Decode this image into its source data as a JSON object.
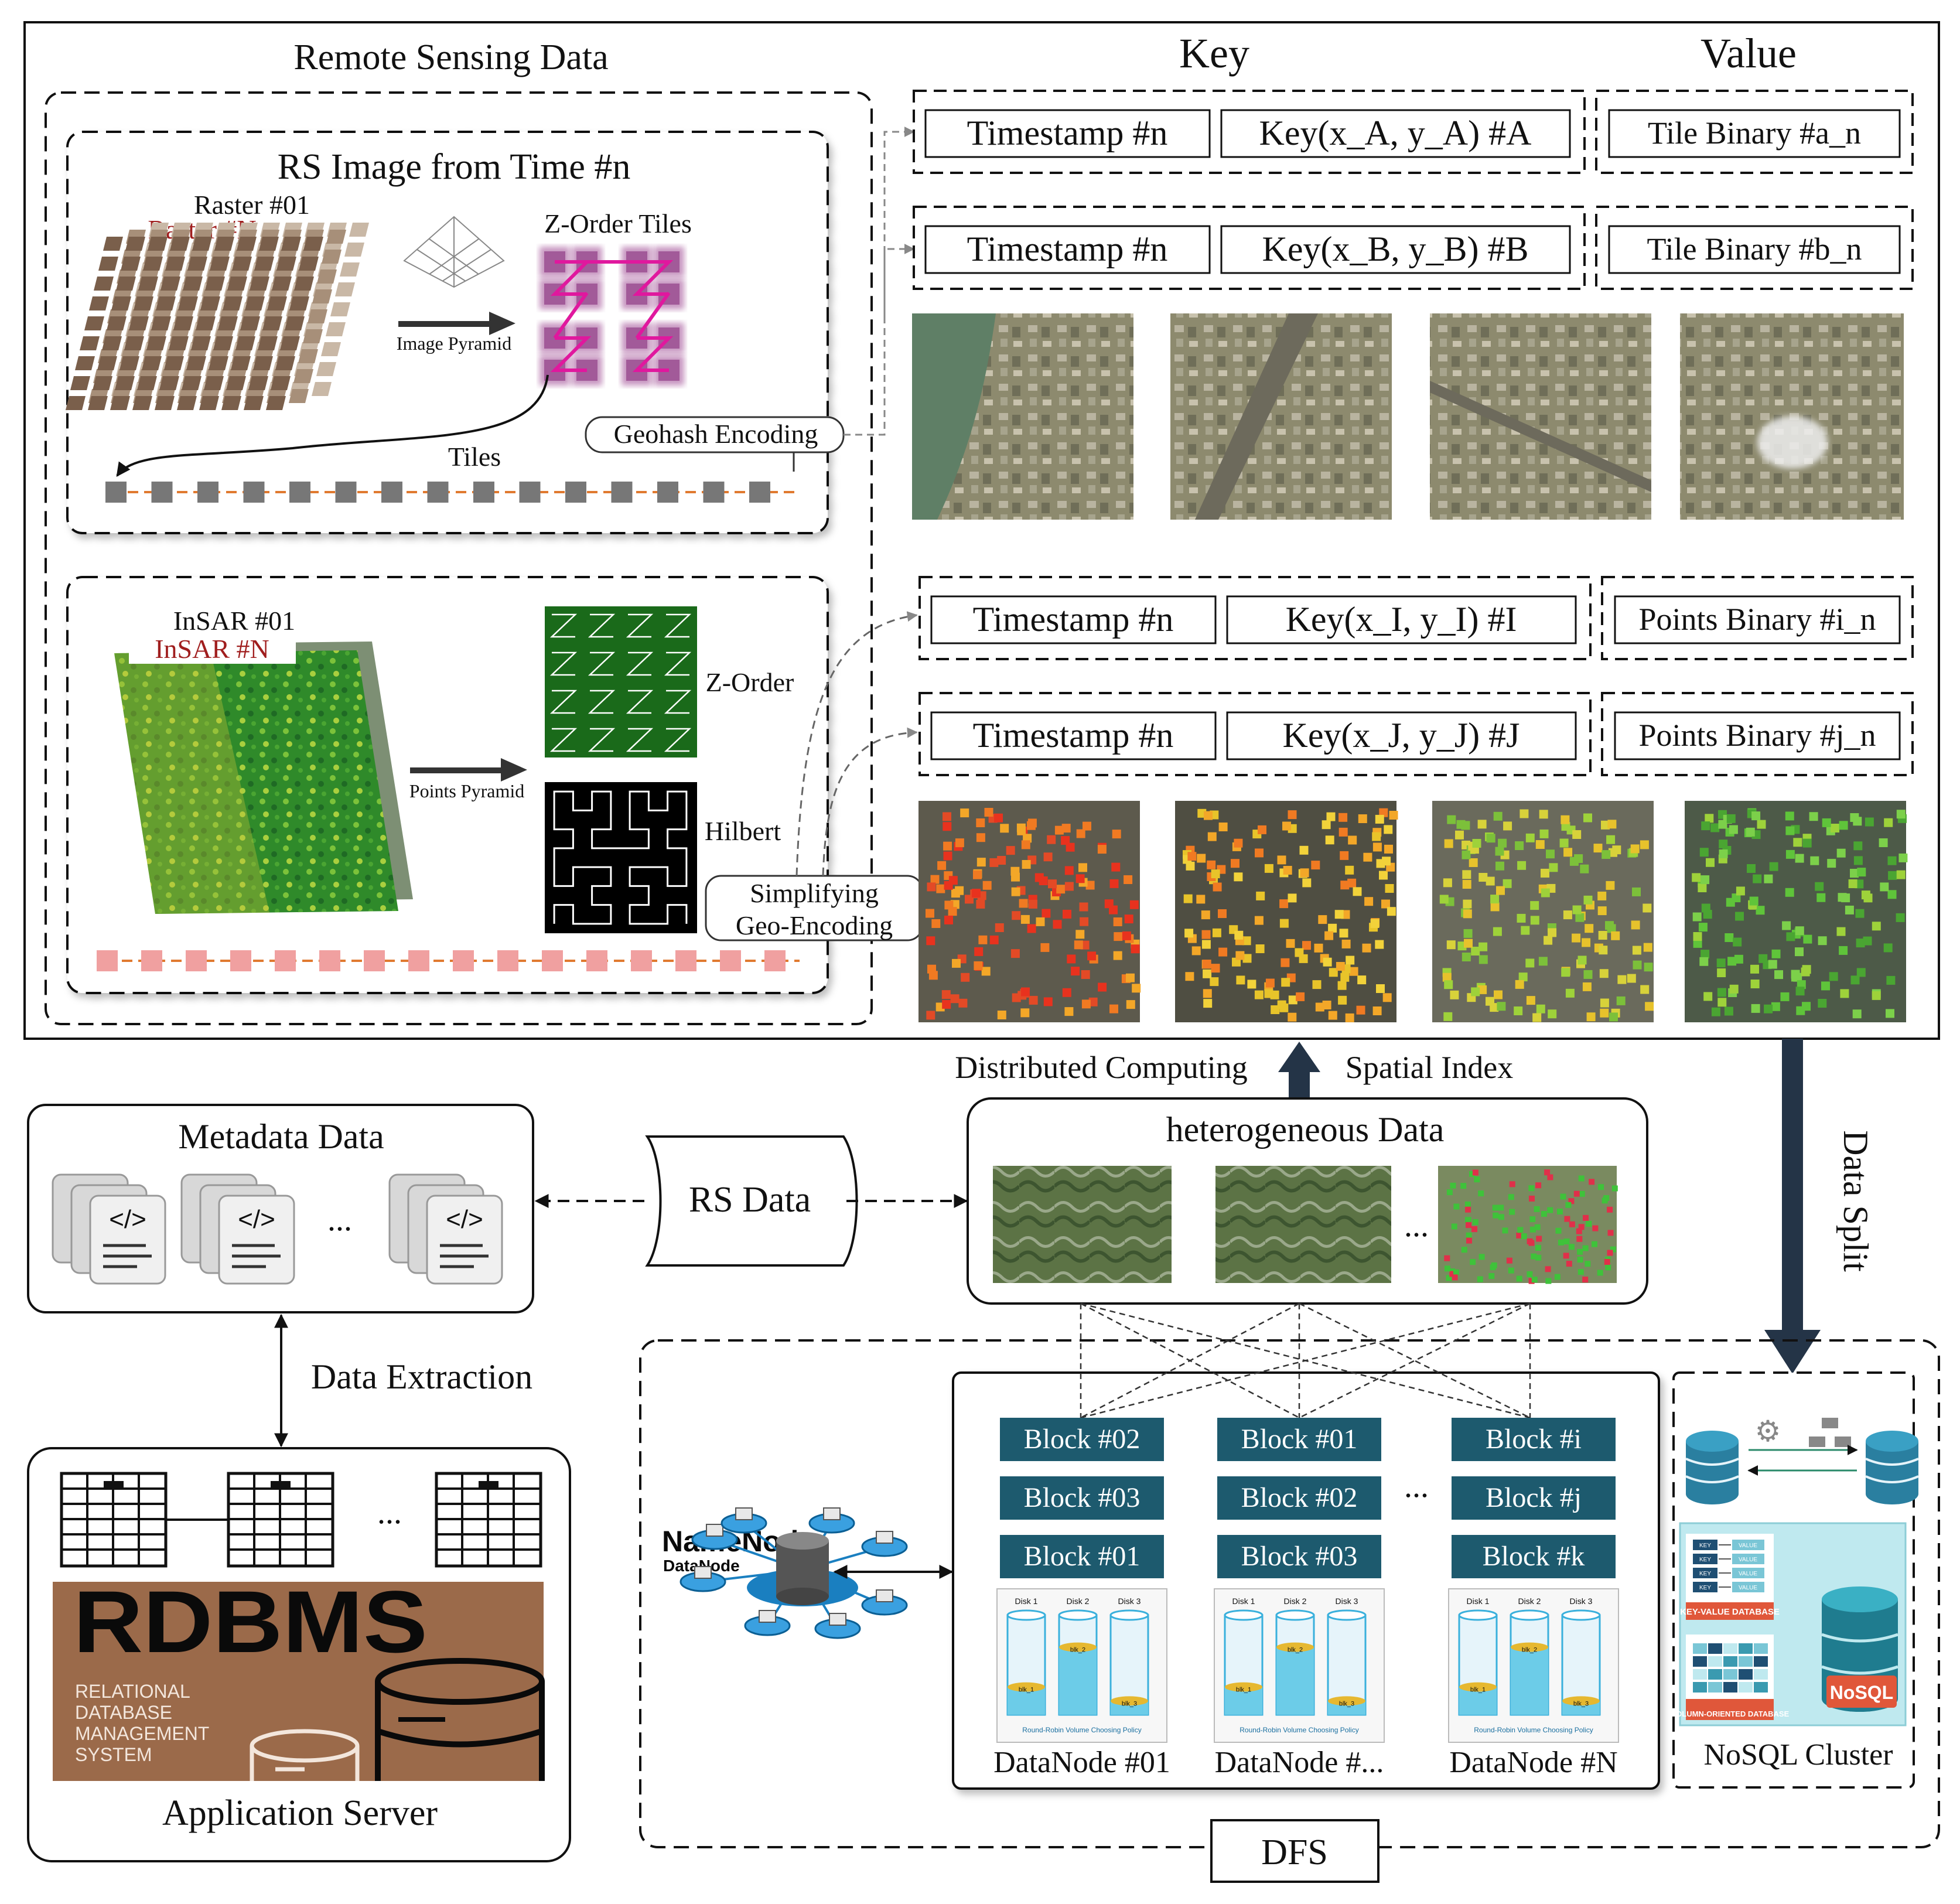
{
  "remote_sensing": {
    "title": "Remote Sensing Data",
    "rs_image_title": "RS Image from Time #n",
    "raster_01": "Raster #01",
    "raster_n": "Raster #N",
    "image_pyramid": "Image Pyramid",
    "zorder_tiles": "Z-Order Tiles",
    "geohash_encoding": "Geohash Encoding",
    "tiles": "Tiles",
    "insar_01": "InSAR #01",
    "insar_n": "InSAR #N",
    "points_pyramid": "Points Pyramid",
    "zorder": "Z-Order",
    "hilbert": "Hilbert",
    "simplifying_1": "Simplifying",
    "simplifying_2": "Geo-Encoding"
  },
  "kv": {
    "key_header": "Key",
    "value_header": "Value",
    "rows": [
      {
        "timestamp": "Timestamp #n",
        "key": "Key(x_A, y_A) #A",
        "value": "Tile Binary #a_n"
      },
      {
        "timestamp": "Timestamp #n",
        "key": "Key(x_B, y_B) #B",
        "value": "Tile Binary #b_n"
      },
      {
        "timestamp": "Timestamp #n",
        "key": "Key(x_I, y_I) #I",
        "value": "Points Binary #i_n"
      },
      {
        "timestamp": "Timestamp #n",
        "key": "Key(x_J, y_J) #J",
        "value": "Points Binary #j_n"
      }
    ]
  },
  "middle": {
    "distributed_computing": "Distributed Computing",
    "spatial_index": "Spatial Index",
    "data_split": "Data Split",
    "metadata_title": "Metadata Data",
    "code_glyph": "</>",
    "ellipsis": "...",
    "rs_data": "RS Data",
    "hetero_title": "heterogeneous Data",
    "data_extraction": "Data Extraction"
  },
  "app_server": {
    "title": "Application Server",
    "rdbms": "RDBMS",
    "rdbms_lines": [
      "RELATIONAL",
      "DATABASE",
      "MANAGEMENT",
      "SYSTEM"
    ]
  },
  "dfs": {
    "label": "DFS",
    "namenode": "NameNode",
    "datanode_sub": "DataNode",
    "columns": [
      {
        "blocks": [
          "Block #02",
          "Block #03",
          "Block #01"
        ],
        "label": "DataNode #01"
      },
      {
        "blocks": [
          "Block #01",
          "Block #02",
          "Block #03"
        ],
        "label": "DataNode #..."
      },
      {
        "blocks": [
          "Block #i",
          "Block #j",
          "Block #k"
        ],
        "label": "DataNode #N"
      }
    ],
    "disks": [
      "Disk 1",
      "Disk 2",
      "Disk 3"
    ],
    "disk_blocks": [
      "blk_1",
      "blk_2",
      "blk_3"
    ],
    "policy": "Round-Robin Volume Choosing Policy",
    "ellipsis": "..."
  },
  "nosql": {
    "title": "NoSQL Cluster",
    "kv_db": "KEY-VALUE DATABASE",
    "col_db": "COLUMN-ORIENTED DATABASE",
    "badge": "NoSQL",
    "key_cell": "KEY",
    "value_cell": "VALUE"
  },
  "colors": {
    "block_fill": "#1d5a6e",
    "arrow_dark": "#243447",
    "rdbms_bg": "#9b6a4a",
    "magenta": "#e0189e",
    "raster_red": "#a01e1e"
  }
}
